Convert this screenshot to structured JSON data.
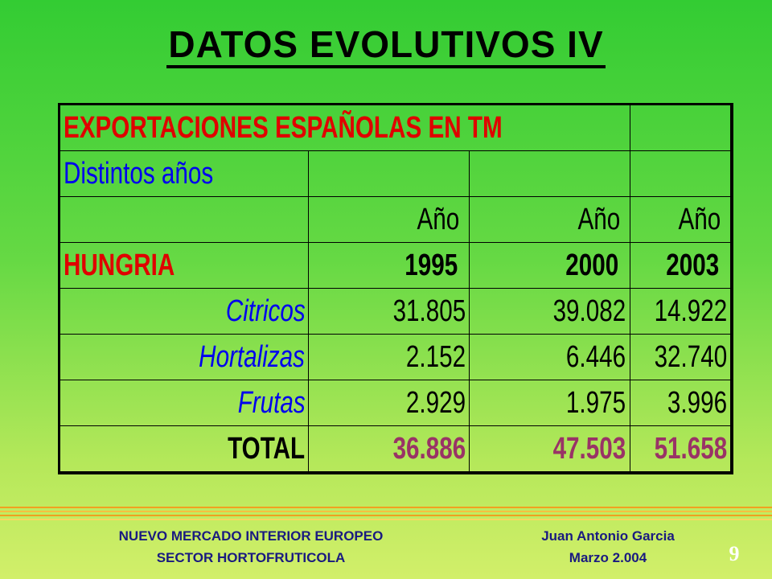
{
  "title": "DATOS EVOLUTIVOS IV",
  "table": {
    "caption": "EXPORTACIONES ESPAÑOLAS EN TM",
    "subtitle": "Distintos años",
    "header": [
      "Año",
      "Año",
      "Año"
    ],
    "country": "HUNGRIA",
    "years": [
      "1995",
      "2000",
      "2003"
    ],
    "rows": [
      {
        "label": "Citricos",
        "values": [
          "31.805",
          "39.082",
          "14.922"
        ]
      },
      {
        "label": "Hortalizas",
        "values": [
          "2.152",
          "6.446",
          "32.740"
        ]
      },
      {
        "label": "Frutas",
        "values": [
          "2.929",
          "1.975",
          "3.996"
        ]
      }
    ],
    "total": {
      "label": "TOTAL",
      "values": [
        "36.886",
        "47.503",
        "51.658"
      ]
    }
  },
  "footer": {
    "left": [
      "NUEVO MERCADO INTERIOR EUROPEO",
      "SECTOR HORTOFRUTICOLA"
    ],
    "right": [
      "Juan Antonio Garcia",
      "Marzo 2.004"
    ],
    "page": "9"
  }
}
